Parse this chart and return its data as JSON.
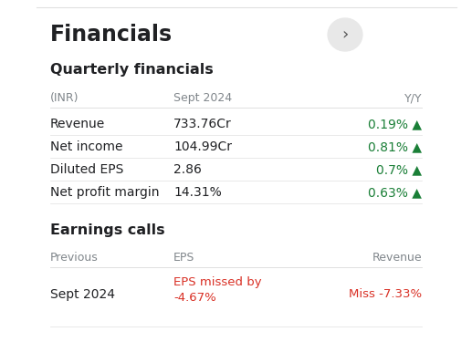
{
  "title": "Financials",
  "section1": "Quarterly financials",
  "section2": "Earnings calls",
  "header_row": [
    "(INR)",
    "Sept 2024",
    "Y/Y"
  ],
  "quarterly_rows": [
    {
      "label": "Revenue",
      "value": "733.76Cr",
      "yy": "0.19%",
      "up": true
    },
    {
      "label": "Net income",
      "value": "104.99Cr",
      "yy": "0.81%",
      "up": true
    },
    {
      "label": "Diluted EPS",
      "value": "2.86",
      "yy": "0.7%",
      "up": true
    },
    {
      "label": "Net profit margin",
      "value": "14.31%",
      "yy": "0.63%",
      "up": true
    }
  ],
  "earnings_header": [
    "Previous",
    "EPS",
    "Revenue"
  ],
  "earnings_rows": [
    {
      "label": "Sept 2024",
      "eps": "EPS missed by\n-4.67%",
      "revenue": "Miss -7.33%"
    }
  ],
  "bg_color": "#ffffff",
  "text_dark": "#202124",
  "text_gray": "#80868b",
  "text_green": "#1a7f37",
  "text_red": "#d93025",
  "divider_color": "#e0e0e0",
  "arrow_up": "▲",
  "circle_color": "#e8e8e8",
  "figsize": [
    5.17,
    3.75
  ],
  "dpi": 100,
  "fig_w": 517,
  "fig_h": 375
}
